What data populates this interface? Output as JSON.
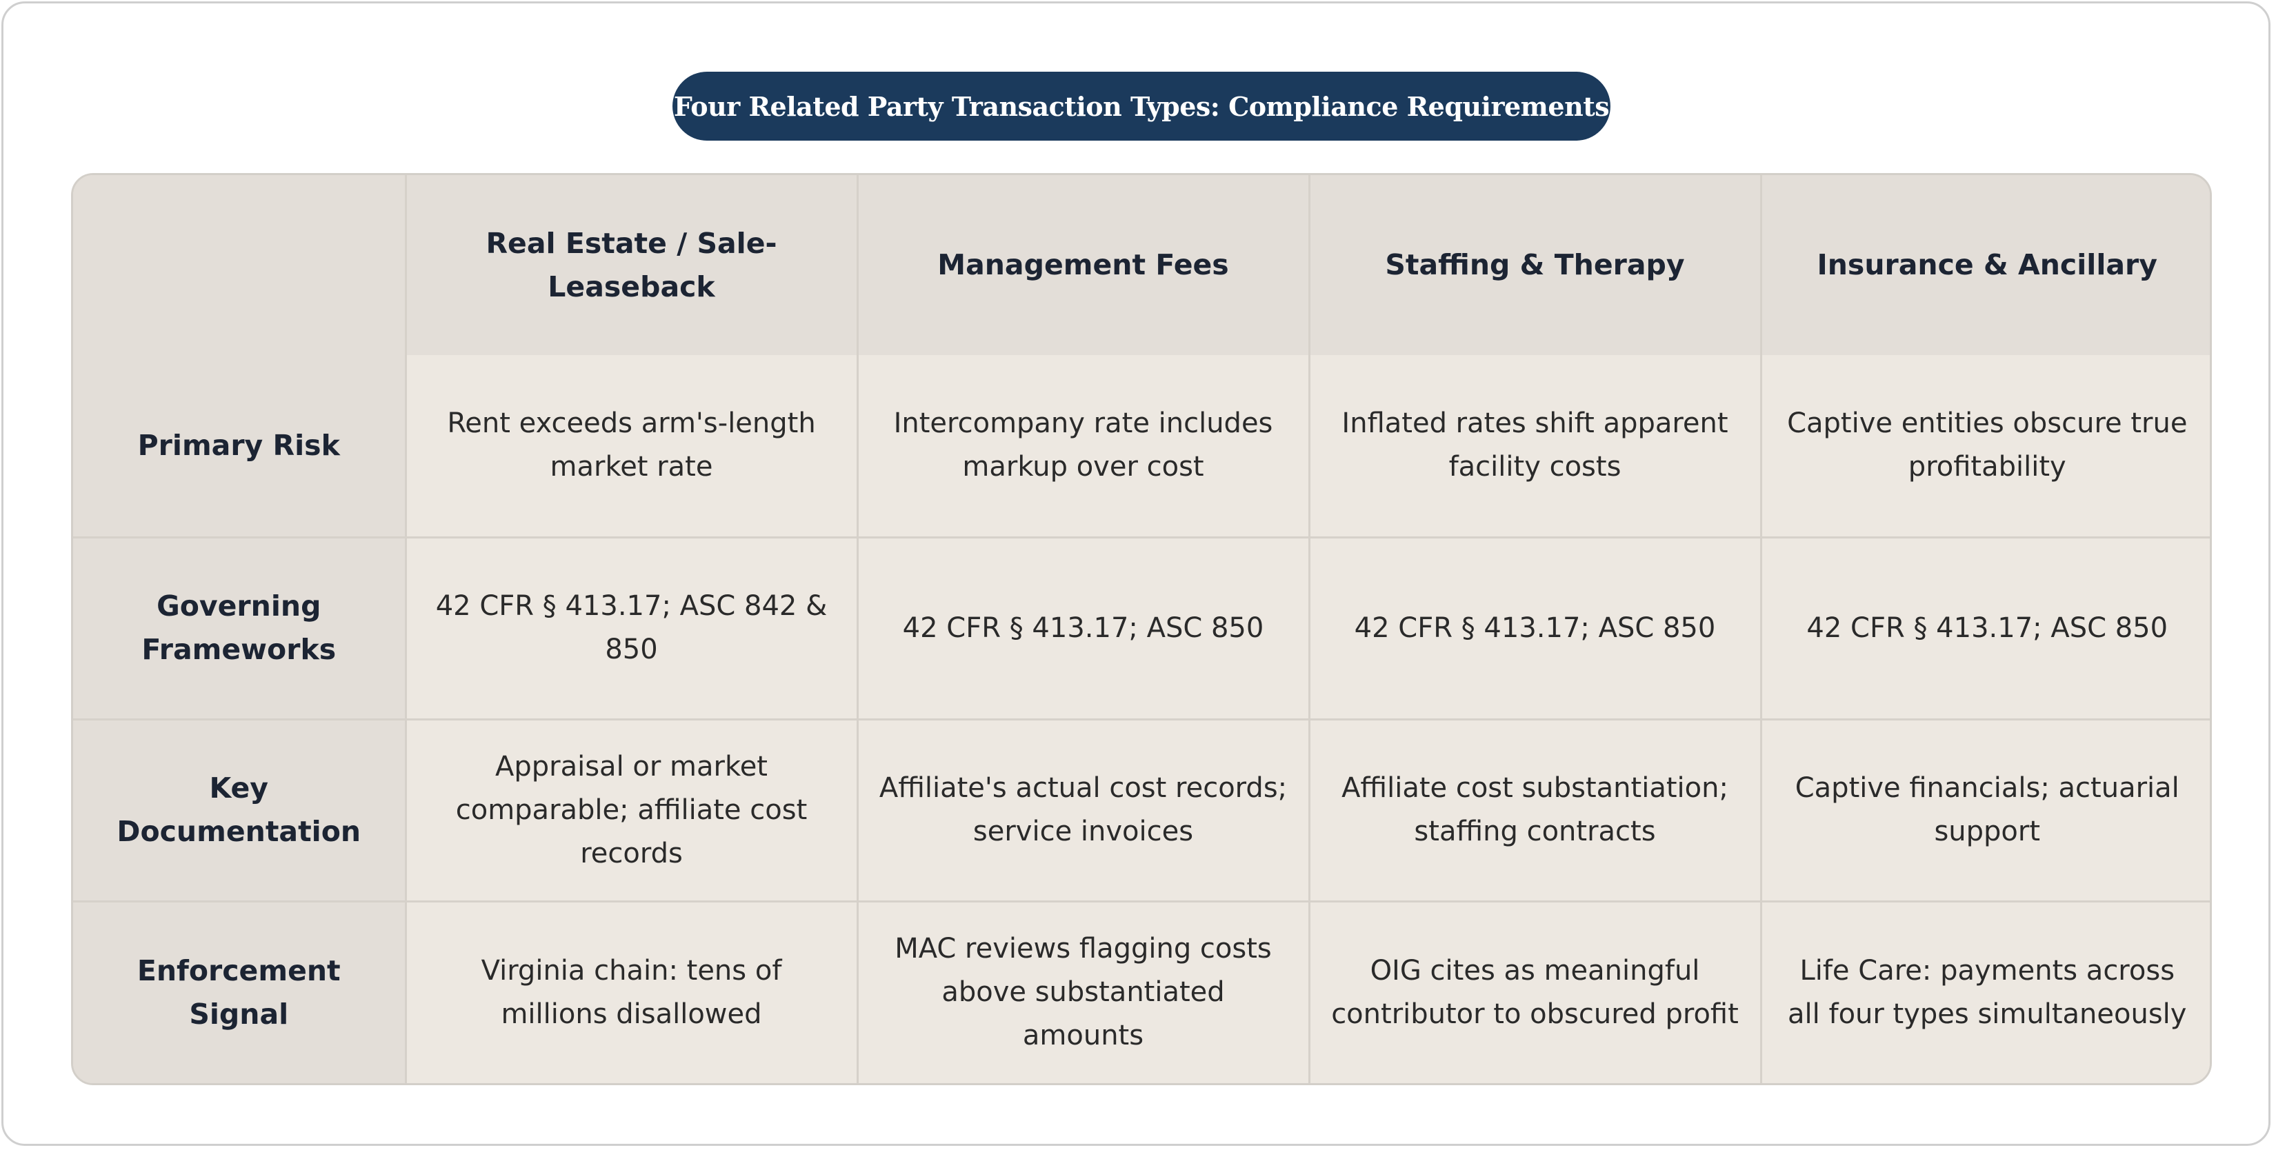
{
  "title": "Four Related Party Transaction Types: Compliance Requirements",
  "columns": [
    "",
    "Real Estate / Sale-Leaseback",
    "Management Fees",
    "Staffing & Therapy",
    "Insurance & Ancillary"
  ],
  "rows": [
    {
      "label": "Primary Risk",
      "cells": [
        "Rent exceeds arm's-length market rate",
        "Intercompany rate includes markup over cost",
        "Inflated rates shift apparent facility costs",
        "Captive entities obscure true profitability"
      ]
    },
    {
      "label": "Governing Frameworks",
      "cells": [
        "42 CFR § 413.17; ASC 842 & 850",
        "42 CFR § 413.17; ASC 850",
        "42 CFR § 413.17; ASC 850",
        "42 CFR § 413.17; ASC 850"
      ]
    },
    {
      "label": "Key Documentation",
      "cells": [
        "Appraisal or market comparable; affiliate cost records",
        "Affiliate's actual cost records; service invoices",
        "Affiliate cost substantiation; staffing contracts",
        "Captive financials; actuarial support"
      ]
    },
    {
      "label": "Enforcement Signal",
      "cells": [
        "Virginia chain: tens of millions disallowed",
        "MAC reviews flagging costs above substantiated amounts",
        "OIG cites as meaningful contributor to obscured profit",
        "Life Care: payments across all four types simultaneously"
      ]
    }
  ]
}
